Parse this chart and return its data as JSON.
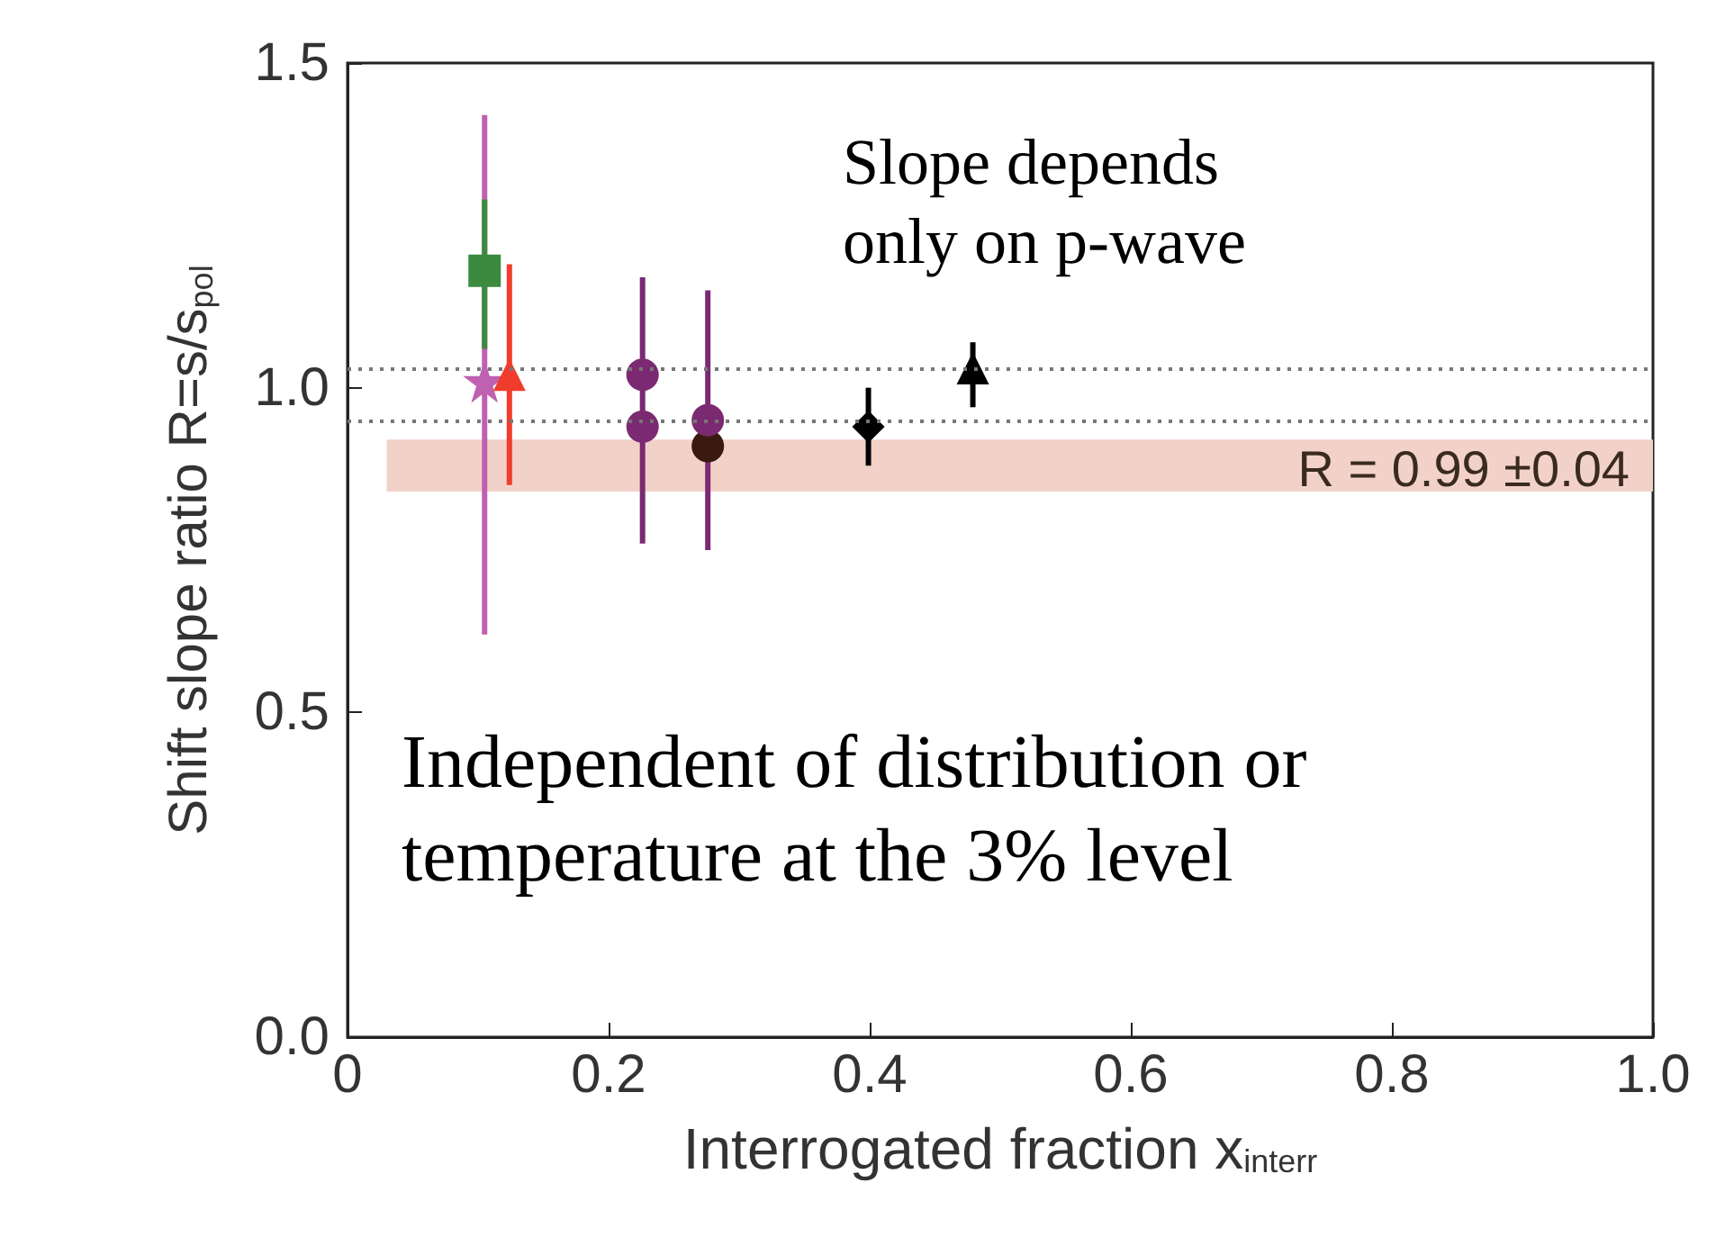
{
  "chart_data": {
    "type": "scatter",
    "xlabel": "Interrogated fraction x$_{interr}$",
    "ylabel": "Shift slope ratio R=s/s$_{pol}$",
    "xlim": [
      0.0,
      1.0
    ],
    "xticks": [
      0.0,
      {
        "value": 0.2,
        "label": "0.2"
      },
      {
        "value": 0.4,
        "label": "0.4"
      },
      {
        "value": 0.6,
        "label": "0.6"
      },
      {
        "value": 0.8,
        "label": "0.8"
      },
      {
        "value": 1.0,
        "label": "1.0"
      }
    ],
    "ylim": [
      0.0,
      1.5
    ],
    "yticks": [
      {
        "value": 0.0,
        "label": "0.0"
      },
      {
        "value": 0.5,
        "label": "0.5"
      },
      {
        "value": 1.0,
        "label": "1.0"
      },
      {
        "value": 1.5,
        "label": "1.5"
      }
    ],
    "grid": false,
    "series": [
      {
        "color": "#3b8a3e",
        "marker": "square",
        "x": [
          0.105
        ],
        "values": [
          1.18
        ],
        "errors": [
          [
            1.06,
            1.29
          ]
        ]
      },
      {
        "color": "#c060b0",
        "marker": "star",
        "x": [
          0.105
        ],
        "values": [
          1.01
        ],
        "errors": [
          [
            0.62,
            1.42
          ]
        ]
      },
      {
        "color": "#f03c2c",
        "marker": "triangle",
        "x": [
          0.124
        ],
        "values": [
          1.02
        ],
        "errors": [
          [
            0.85,
            1.19
          ]
        ]
      },
      {
        "color": "#7b2a72",
        "x": [
          0.226
        ],
        "values": [
          1.02
        ],
        "errors": [
          [
            0.76,
            1.17
          ]
        ]
      },
      {
        "color": "#7b2a72",
        "x": [
          0.226
        ],
        "values": [
          0.94
        ],
        "errors": [
          null
        ]
      },
      {
        "color": "#3a1a10",
        "x": [
          0.276
        ],
        "values": [
          0.91
        ],
        "errors": [
          null
        ]
      },
      {
        "color": "#7b2a72",
        "x": [
          0.276
        ],
        "values": [
          0.95
        ],
        "errors": [
          [
            0.75,
            1.15
          ]
        ]
      },
      {
        "color": "#000000",
        "marker": "diamond",
        "x": [
          0.399
        ],
        "values": [
          0.94
        ],
        "errors": [
          [
            0.88,
            1.0
          ]
        ]
      },
      {
        "color": "#000000",
        "marker": "triangle",
        "x": [
          0.479
        ],
        "values": [
          1.03
        ],
        "errors": [
          [
            0.97,
            1.07
          ]
        ]
      }
    ],
    "ref_lines": [
      {
        "axis": "y",
        "value": 1.03,
        "color": "#777777",
        "line_style": "dotted"
      },
      {
        "axis": "y",
        "value": 0.95,
        "color": "#777777",
        "line_style": "dotted"
      }
    ],
    "bands": [
      {
        "axis": "y",
        "from": 0.84,
        "to": 0.92,
        "label": "R = 0.99 ±0.04",
        "color": "#f2d2c8"
      }
    ],
    "annotations": [
      "Slope depends\nonly on p-wave",
      "Independent of distribution or\ntemperature at the 3% level"
    ]
  }
}
